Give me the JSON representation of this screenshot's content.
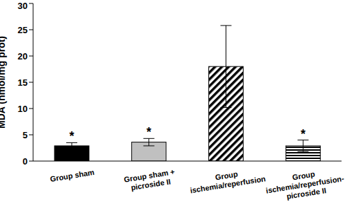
{
  "chart_data": {
    "type": "bar",
    "categories": [
      "Group sham",
      "Group sham + picroside II",
      "Group ischemia/reperfusion",
      "Group ischemia/reperfusion-picroside II"
    ],
    "values": [
      2.9,
      3.6,
      18,
      2.9
    ],
    "errors": [
      0.6,
      0.7,
      7.8,
      1.1
    ],
    "annotations": [
      "*",
      "*",
      null,
      "*"
    ],
    "colors": [
      "#000000",
      "#c0c0c0",
      "#000000",
      "#000000"
    ],
    "y_label": "MDA (nmol/mg prot)",
    "ylim": [
      0,
      30
    ],
    "yticks": [
      0,
      5,
      10,
      15,
      20,
      25,
      30
    ],
    "grid": false
  }
}
